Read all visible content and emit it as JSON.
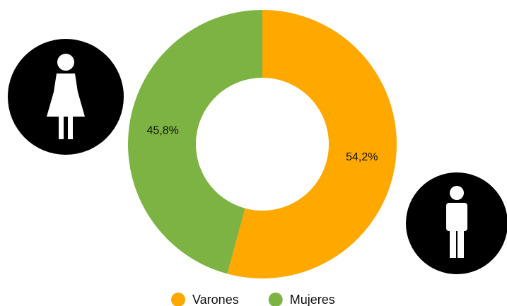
{
  "chart_data": {
    "type": "pie",
    "categories": [
      "Varones",
      "Mujeres"
    ],
    "values": [
      54.2,
      45.8
    ],
    "value_labels": [
      "54,2%",
      "45,8%"
    ],
    "colors": [
      "#ffa800",
      "#7cb342"
    ]
  }
}
